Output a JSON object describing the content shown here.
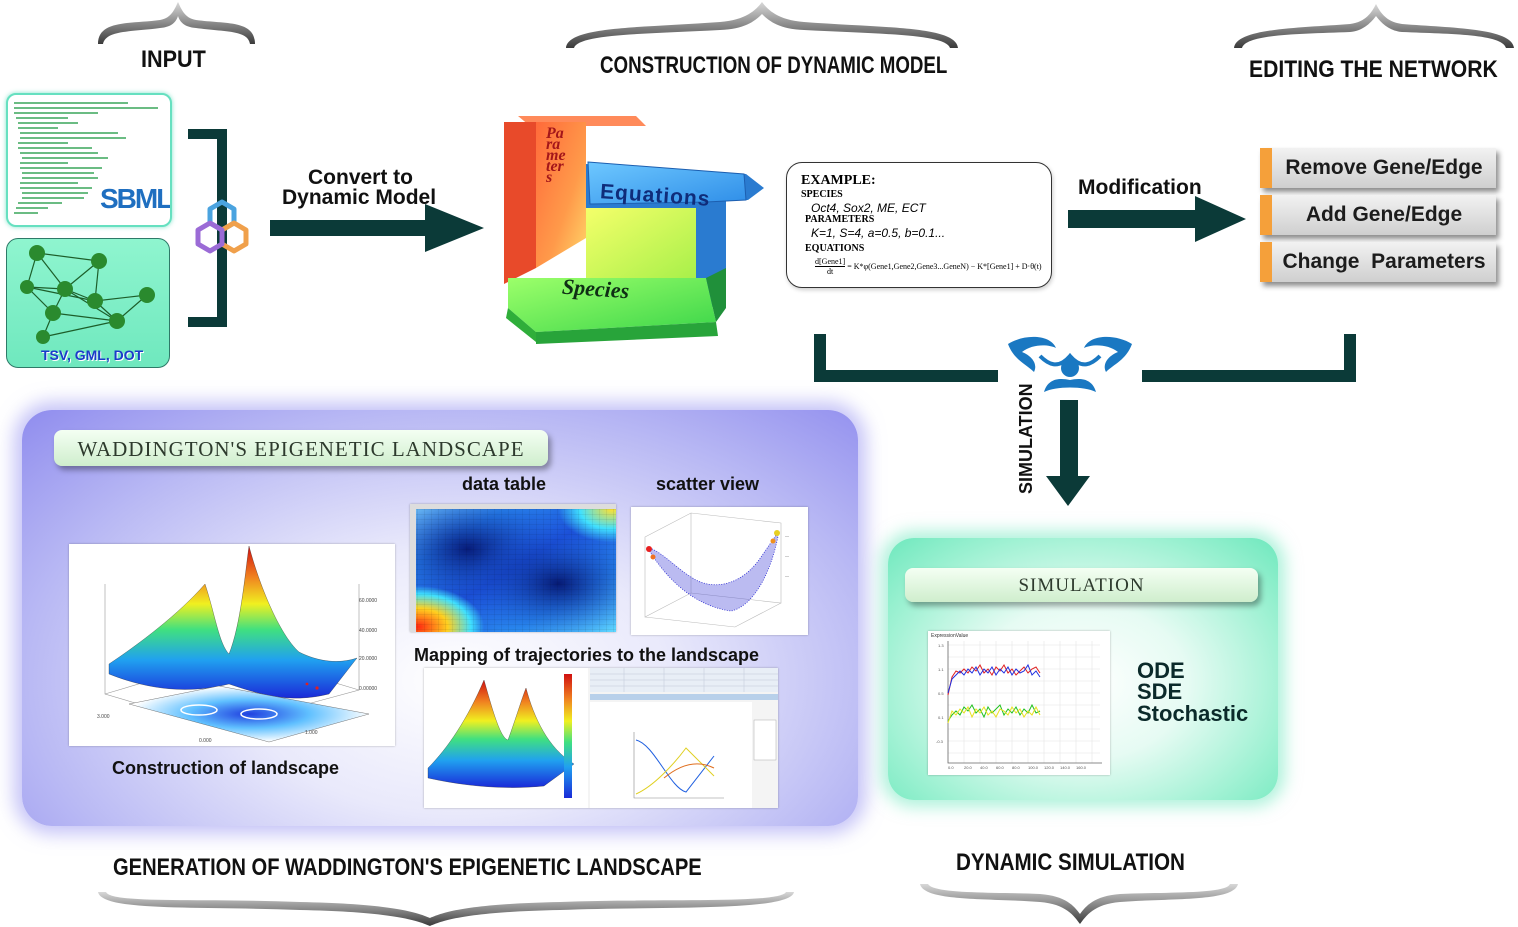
{
  "headings": {
    "input": "INPUT",
    "construction": "CONSTRUCTION OF DYNAMIC MODEL",
    "editing": "EDITING THE NETWORK",
    "generation": "GENERATION OF WADDINGTON'S EPIGENETIC LANDSCAPE",
    "dynamic_simulation": "DYNAMIC SIMULATION"
  },
  "input": {
    "sbml_logo": "SBML",
    "network_formats": "TSV, GML, DOT"
  },
  "convert_label_line1": "Convert to",
  "convert_label_line2": "Dynamic Model",
  "cube": {
    "parameters": "Parameters",
    "equations": "Equations",
    "species": "Species"
  },
  "example": {
    "title": "EXAMPLE:",
    "species_label": "SPECIES",
    "species_value": "Oct4, Sox2, ME, ECT",
    "parameters_label": "PARAMETERS",
    "parameters_value": "K=1, S=4, a=0.5, b=0.1...",
    "equations_label": "EQUATIONS",
    "equation_numerator": "d[Gene1]",
    "equation_denominator": "dt",
    "equation_rhs": "= K*φ(Gene1,Gene2,Gene3...GeneN) − K*[Gene1] + D·θ(t)"
  },
  "modification_label": "Modification",
  "edit_buttons": [
    "Remove Gene/Edge",
    "Add Gene/Edge",
    "Change  Parameters"
  ],
  "simulation_arrow_label": "SIMULATION",
  "landscape_panel": {
    "banner": "WADDINGTON'S EPIGENETIC LANDSCAPE",
    "data_table": "data table",
    "scatter_view": "scatter view",
    "mapping": "Mapping of trajectories to the landscape",
    "construction": "Construction of landscape"
  },
  "simulation_panel": {
    "banner": "SIMULATION",
    "chart_ylabel": "ExpressionValue",
    "methods": [
      "ODE",
      "SDE",
      "Stochastic"
    ]
  },
  "colors": {
    "dark_teal": "#0b3a38",
    "orange_accent": "#f5a03a",
    "blue_panel": "#8f8cee",
    "green_panel": "#6ee8bd",
    "logo_blue": "#1a78c2"
  }
}
